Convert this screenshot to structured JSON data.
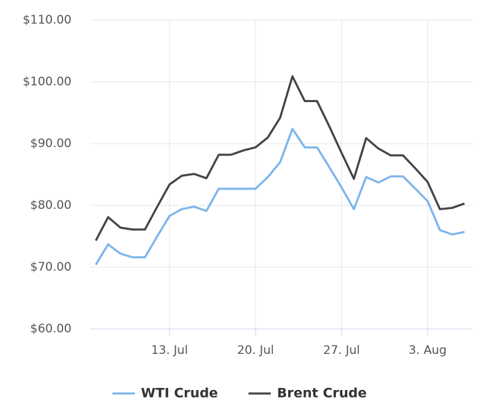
{
  "chart_data": {
    "type": "line",
    "categories": [
      null,
      null,
      null,
      null,
      null,
      null,
      "13. Jul",
      null,
      null,
      null,
      null,
      null,
      null,
      "20. Jul",
      null,
      null,
      null,
      null,
      null,
      null,
      "27. Jul",
      null,
      null,
      null,
      null,
      null,
      null,
      "3. Aug",
      null,
      null,
      null
    ],
    "series": [
      {
        "name": "WTI Crude",
        "color": "#7cb5ec",
        "values": [
          70.4,
          73.7,
          72.2,
          71.6,
          71.6,
          75.0,
          78.3,
          79.4,
          79.8,
          79.1,
          82.7,
          82.7,
          82.7,
          82.7,
          84.6,
          87.0,
          92.4,
          89.4,
          89.4,
          86.2,
          82.9,
          79.4,
          84.6,
          83.7,
          84.7,
          84.7,
          82.7,
          80.7,
          76.0,
          75.3,
          75.7
        ]
      },
      {
        "name": "Brent Crude",
        "color": "#434348",
        "values": [
          74.3,
          78.1,
          76.4,
          76.1,
          76.1,
          79.8,
          83.4,
          84.8,
          85.1,
          84.4,
          88.2,
          88.2,
          88.9,
          89.4,
          91.0,
          94.2,
          100.9,
          96.9,
          96.9,
          92.8,
          88.5,
          84.3,
          90.9,
          89.2,
          88.1,
          88.1,
          86.0,
          83.8,
          79.4,
          79.6,
          80.3
        ]
      }
    ],
    "ylim": [
      60,
      110
    ],
    "yticks": [
      {
        "value": 60,
        "label": "$60.00"
      },
      {
        "value": 70,
        "label": "$70.00"
      },
      {
        "value": 80,
        "label": "$80.00"
      },
      {
        "value": 90,
        "label": "$90.00"
      },
      {
        "value": 100,
        "label": "$100.00"
      },
      {
        "value": 110,
        "label": "$110.00"
      }
    ],
    "grid": true
  }
}
